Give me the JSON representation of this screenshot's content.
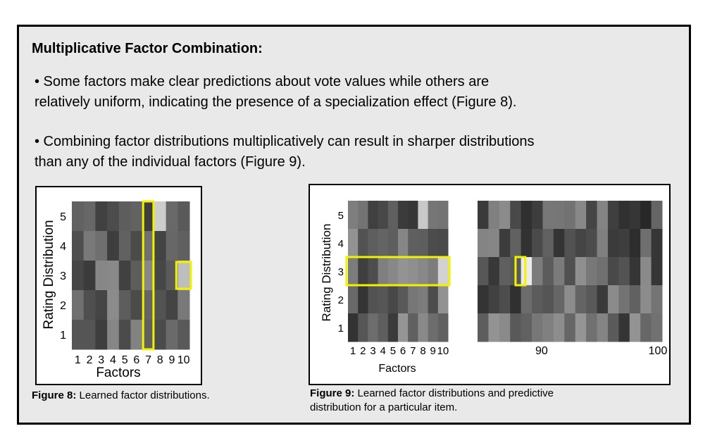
{
  "heading": "Multiplicative Factor Combination:",
  "bullets": [
    {
      "line1": "• Some factors make clear predictions about vote values while others are",
      "line2": "relatively uniform, indicating the presence of a specialization effect (Figure 8)."
    },
    {
      "line1": "• Combining factor distributions multiplicatively can result in sharper distributions",
      "line2": "than any of the individual factors (Figure 9)."
    }
  ],
  "figure8": {
    "caption_label": "Figure 8:",
    "caption_text": " Learned factor distributions.",
    "ylabel": "Rating Distribution",
    "xlabel": "Factors",
    "yticks": [
      "1",
      "2",
      "3",
      "4",
      "5"
    ],
    "xticks": [
      "1",
      "2",
      "3",
      "4",
      "5",
      "6",
      "7",
      "8",
      "9",
      "10"
    ],
    "highlight_color": "#f2f200"
  },
  "figure9": {
    "caption_label": "Figure 9:",
    "caption_text": " Learned factor distributions and predictive",
    "caption_line2": "distribution for a particular item.",
    "ylabel": "Rating Distribution",
    "xlabel": "Factors",
    "yticks": [
      "1",
      "2",
      "3",
      "4",
      "5"
    ],
    "xticks": [
      "1",
      "2",
      "3",
      "4",
      "5",
      "6",
      "7",
      "8",
      "9",
      "10"
    ],
    "right_xticks": [
      "90",
      "100"
    ],
    "highlight_color": "#f2f200"
  }
}
